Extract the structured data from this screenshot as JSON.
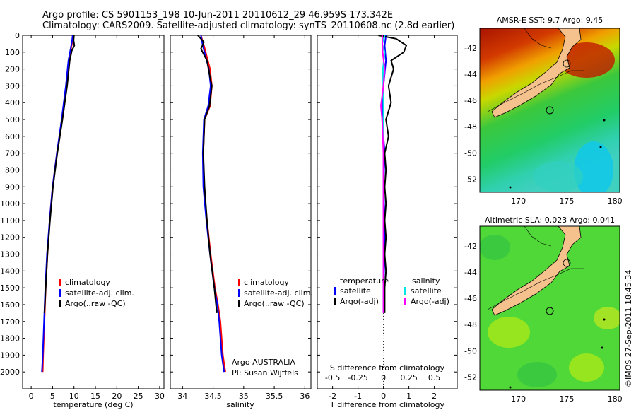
{
  "header": {
    "line1": "Argo profile: CS 5901153_198 10-Jun-2011 20110612_29 46.959S 173.342E",
    "line2": "Climatology: CARS2009. Satellite-adjusted climatology: synTS_20110608.nc (2.8d earlier)"
  },
  "credit": "©IMOS 27-Sep-2011 18:45:34",
  "colors": {
    "climatology": "#ff0000",
    "satellite": "#0000ff",
    "argo": "#000000",
    "sal_satellite": "#00e5e5",
    "sal_argo": "#ff00ff",
    "land": "#f5c18c"
  },
  "chart_data": [
    {
      "type": "line",
      "xlabel": "temperature (deg C)",
      "ylabel": "",
      "xlim": [
        -2,
        31
      ],
      "ylim": [
        2100,
        0
      ],
      "xticks": [
        0,
        5,
        10,
        15,
        20,
        25,
        30
      ],
      "yticks": [
        0,
        100,
        200,
        300,
        400,
        500,
        600,
        700,
        800,
        900,
        1000,
        1100,
        1200,
        1300,
        1400,
        1500,
        1600,
        1700,
        1800,
        1900,
        2000
      ],
      "legend": [
        "climatology",
        "satellite-adj. clim.",
        "Argo(..raw -QC)"
      ],
      "series": [
        {
          "name": "climatology",
          "points": [
            [
              9.7,
              0
            ],
            [
              9.6,
              40
            ],
            [
              9.3,
              80
            ],
            [
              8.8,
              150
            ],
            [
              8.2,
              300
            ],
            [
              7.2,
              500
            ],
            [
              6.0,
              700
            ],
            [
              5.0,
              900
            ],
            [
              4.3,
              1100
            ],
            [
              3.8,
              1300
            ],
            [
              3.4,
              1500
            ],
            [
              3.1,
              1700
            ],
            [
              2.8,
              1900
            ],
            [
              2.7,
              2000
            ]
          ]
        },
        {
          "name": "satellite-adj. clim.",
          "points": [
            [
              9.7,
              0
            ],
            [
              9.5,
              40
            ],
            [
              9.2,
              80
            ],
            [
              8.7,
              150
            ],
            [
              8.1,
              300
            ],
            [
              7.1,
              500
            ],
            [
              6.0,
              700
            ],
            [
              5.0,
              900
            ],
            [
              4.3,
              1100
            ],
            [
              3.7,
              1300
            ],
            [
              3.3,
              1500
            ],
            [
              3.0,
              1700
            ],
            [
              2.7,
              1900
            ],
            [
              2.5,
              2000
            ]
          ]
        },
        {
          "name": "Argo(..raw -QC)",
          "points": [
            [
              10.0,
              0
            ],
            [
              9.9,
              30
            ],
            [
              10.1,
              60
            ],
            [
              9.5,
              90
            ],
            [
              9.0,
              150
            ],
            [
              8.4,
              300
            ],
            [
              7.3,
              500
            ],
            [
              6.1,
              700
            ],
            [
              5.1,
              900
            ],
            [
              4.4,
              1100
            ],
            [
              3.8,
              1300
            ],
            [
              3.4,
              1500
            ],
            [
              3.1,
              1650
            ]
          ]
        }
      ]
    },
    {
      "type": "line",
      "xlabel": "salinity",
      "xlim": [
        33.8,
        36.1
      ],
      "ylim": [
        2100,
        0
      ],
      "xticks": [
        34,
        34.5,
        35,
        35.5,
        36
      ],
      "legend": [
        "climatology",
        "satellite-adj. clim.",
        "Argo(..raw -QC)"
      ],
      "annotation": [
        "Argo AUSTRALIA",
        "PI: Susan Wijffels"
      ],
      "series": [
        {
          "name": "climatology",
          "points": [
            [
              34.3,
              0
            ],
            [
              34.35,
              60
            ],
            [
              34.45,
              200
            ],
            [
              34.48,
              300
            ],
            [
              34.45,
              420
            ],
            [
              34.36,
              500
            ],
            [
              34.34,
              700
            ],
            [
              34.35,
              900
            ],
            [
              34.4,
              1100
            ],
            [
              34.46,
              1300
            ],
            [
              34.53,
              1500
            ],
            [
              34.58,
              1600
            ],
            [
              34.62,
              1700
            ],
            [
              34.66,
              1900
            ],
            [
              34.7,
              2000
            ]
          ]
        },
        {
          "name": "satellite-adj. clim.",
          "points": [
            [
              34.3,
              0
            ],
            [
              34.33,
              60
            ],
            [
              34.43,
              200
            ],
            [
              34.46,
              300
            ],
            [
              34.42,
              420
            ],
            [
              34.35,
              500
            ],
            [
              34.33,
              700
            ],
            [
              34.34,
              900
            ],
            [
              34.39,
              1100
            ],
            [
              34.45,
              1300
            ],
            [
              34.52,
              1500
            ],
            [
              34.57,
              1600
            ],
            [
              34.6,
              1700
            ],
            [
              34.64,
              1900
            ],
            [
              34.68,
              2000
            ]
          ]
        },
        {
          "name": "Argo(..raw -QC)",
          "points": [
            [
              34.25,
              0
            ],
            [
              34.35,
              40
            ],
            [
              34.3,
              80
            ],
            [
              34.4,
              150
            ],
            [
              34.45,
              250
            ],
            [
              34.48,
              300
            ],
            [
              34.44,
              420
            ],
            [
              34.36,
              500
            ],
            [
              34.34,
              700
            ],
            [
              34.36,
              900
            ],
            [
              34.4,
              1100
            ],
            [
              34.45,
              1300
            ],
            [
              34.52,
              1500
            ],
            [
              34.56,
              1650
            ]
          ]
        }
      ]
    },
    {
      "type": "line",
      "xlabel": "T difference from climatology",
      "xlabel_top": "S difference from climatology",
      "xlim": [
        -2.6,
        2.9
      ],
      "ylim": [
        2100,
        0
      ],
      "xticks": [
        -2,
        -1,
        0,
        1,
        2
      ],
      "xticks_top_values": [
        -0.5,
        -0.25,
        0,
        0.25,
        0.5
      ],
      "xticks_top": [
        "-0.5",
        "-0.25",
        "0",
        "0.25",
        "0.5"
      ],
      "legend_titles": [
        "temperature",
        "salinity"
      ],
      "legend": [
        "satellite",
        "Argo(-adj)",
        "satellite",
        "Argo(-adj)"
      ],
      "series": [
        {
          "name": "satellite",
          "points": [
            [
              0.1,
              0
            ],
            [
              0.05,
              60
            ],
            [
              0.1,
              150
            ],
            [
              0.0,
              300
            ],
            [
              -0.05,
              500
            ],
            [
              0.05,
              700
            ],
            [
              0.0,
              900
            ],
            [
              0.05,
              1100
            ],
            [
              0.05,
              1300
            ],
            [
              0.0,
              1500
            ],
            [
              0.0,
              1650
            ]
          ]
        },
        {
          "name": "Argo(-adj)",
          "points": [
            [
              -0.2,
              0
            ],
            [
              0.5,
              20
            ],
            [
              0.9,
              60
            ],
            [
              0.8,
              100
            ],
            [
              0.3,
              150
            ],
            [
              0.4,
              200
            ],
            [
              0.2,
              300
            ],
            [
              0.3,
              400
            ],
            [
              0.1,
              500
            ],
            [
              0.2,
              600
            ],
            [
              0.05,
              700
            ],
            [
              0.1,
              800
            ],
            [
              0.05,
              900
            ],
            [
              0.1,
              1000
            ],
            [
              0.05,
              1100
            ],
            [
              0.1,
              1200
            ],
            [
              0.05,
              1300
            ],
            [
              0.1,
              1400
            ],
            [
              0.05,
              1500
            ],
            [
              0.05,
              1650
            ]
          ]
        },
        {
          "name": "satellite",
          "points": [
            [
              0.05,
              0
            ],
            [
              -0.05,
              50
            ],
            [
              0.05,
              100
            ],
            [
              -0.02,
              200
            ],
            [
              0.0,
              400
            ],
            [
              0.0,
              1650
            ]
          ]
        },
        {
          "name": "Argo(-adj)",
          "points": [
            [
              -0.05,
              0
            ],
            [
              -0.03,
              100
            ],
            [
              0.05,
              200
            ],
            [
              0.0,
              300
            ],
            [
              -0.1,
              420
            ],
            [
              -0.05,
              500
            ],
            [
              0.0,
              700
            ],
            [
              0.0,
              1650
            ]
          ]
        }
      ]
    },
    {
      "type": "heatmap",
      "title": "AMSR-E SST: 9.7  Argo: 9.45",
      "xlim": [
        166,
        180.5
      ],
      "ylim": [
        -53,
        -40.5
      ],
      "xticks": [
        170,
        175,
        180
      ],
      "yticks": [
        -42,
        -44,
        -46,
        -48,
        -50,
        -52
      ],
      "float_position": [
        173.342,
        -46.959
      ]
    },
    {
      "type": "heatmap",
      "title": "Altimetric SLA: 0.023  Argo: 0.041",
      "xlim": [
        166,
        180.5
      ],
      "ylim": [
        -53,
        -40.5
      ],
      "xticks": [
        170,
        175,
        180
      ],
      "yticks": [
        -42,
        -44,
        -46,
        -48,
        -50,
        -52
      ],
      "float_position": [
        173.342,
        -46.959
      ]
    }
  ]
}
